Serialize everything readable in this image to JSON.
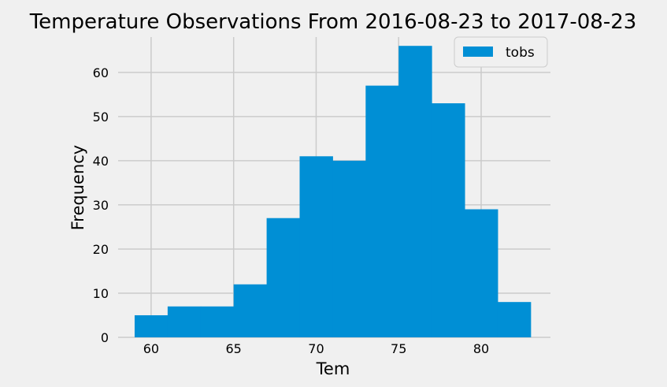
{
  "chart_data": {
    "type": "bar",
    "title": "Temperature Observations From 2016-08-23 to 2017-08-23",
    "xlabel": "Tem",
    "ylabel": "Frequency",
    "xlim": [
      58,
      84.2
    ],
    "ylim": [
      0,
      68
    ],
    "xticks": [
      60,
      65,
      70,
      75,
      80
    ],
    "yticks": [
      0,
      10,
      20,
      30,
      40,
      50,
      60
    ],
    "grid": true,
    "legend_position": "top-right",
    "series": [
      {
        "name": "tobs",
        "color": "#008fd5",
        "bins": [
          {
            "x0": 59,
            "x1": 61,
            "count": 5
          },
          {
            "x0": 61,
            "x1": 63,
            "count": 7
          },
          {
            "x0": 63,
            "x1": 65,
            "count": 7
          },
          {
            "x0": 65,
            "x1": 67,
            "count": 12
          },
          {
            "x0": 67,
            "x1": 69,
            "count": 27
          },
          {
            "x0": 69,
            "x1": 71,
            "count": 41
          },
          {
            "x0": 71,
            "x1": 73,
            "count": 40
          },
          {
            "x0": 73,
            "x1": 75,
            "count": 57
          },
          {
            "x0": 75,
            "x1": 77,
            "count": 66
          },
          {
            "x0": 77,
            "x1": 79,
            "count": 53
          },
          {
            "x0": 79,
            "x1": 81,
            "count": 29
          },
          {
            "x0": 81,
            "x1": 83,
            "count": 8
          }
        ]
      }
    ]
  }
}
